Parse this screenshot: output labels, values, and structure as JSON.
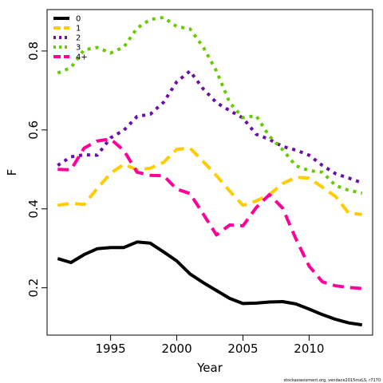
{
  "chart_data": {
    "type": "line",
    "xlabel": "Year",
    "ylabel": "F",
    "xlim": [
      1990.2,
      2014.8
    ],
    "ylim": [
      0.08,
      0.905
    ],
    "x_ticks": [
      1995,
      2000,
      2005,
      2010
    ],
    "y_ticks": [
      0.2,
      0.4,
      0.6,
      0.8
    ],
    "legend_position": "top-left",
    "x": [
      1991,
      1992,
      1993,
      1994,
      1995,
      1996,
      1997,
      1998,
      1999,
      2000,
      2001,
      2002,
      2003,
      2004,
      2005,
      2006,
      2007,
      2008,
      2009,
      2010,
      2011,
      2012,
      2013,
      2014
    ],
    "series": [
      {
        "name": "0",
        "color": "#000000",
        "dash": "solid",
        "values": [
          0.274,
          0.264,
          0.284,
          0.299,
          0.302,
          0.302,
          0.316,
          0.313,
          0.291,
          0.268,
          0.235,
          0.213,
          0.193,
          0.173,
          0.16,
          0.161,
          0.164,
          0.165,
          0.159,
          0.146,
          0.132,
          0.12,
          0.111,
          0.106
        ]
      },
      {
        "name": "1",
        "color": "#ffcc00",
        "dash": "dashed",
        "values": [
          0.409,
          0.414,
          0.411,
          0.452,
          0.49,
          0.513,
          0.499,
          0.503,
          0.518,
          0.551,
          0.554,
          0.52,
          0.484,
          0.445,
          0.409,
          0.42,
          0.436,
          0.464,
          0.48,
          0.478,
          0.455,
          0.431,
          0.389,
          0.386
        ]
      },
      {
        "name": "2",
        "color": "#6a0dad",
        "dash": "dotted",
        "values": [
          0.51,
          0.532,
          0.537,
          0.536,
          0.58,
          0.599,
          0.634,
          0.64,
          0.67,
          0.722,
          0.749,
          0.704,
          0.669,
          0.649,
          0.63,
          0.589,
          0.576,
          0.558,
          0.549,
          0.536,
          0.51,
          0.489,
          0.478,
          0.466
        ]
      },
      {
        "name": "3",
        "color": "#66cc00",
        "dash": "dotted",
        "values": [
          0.744,
          0.758,
          0.803,
          0.809,
          0.795,
          0.81,
          0.858,
          0.88,
          0.885,
          0.862,
          0.856,
          0.81,
          0.749,
          0.669,
          0.631,
          0.636,
          0.584,
          0.55,
          0.509,
          0.497,
          0.493,
          0.459,
          0.447,
          0.44
        ]
      },
      {
        "name": "4+",
        "color": "#ff0099",
        "dash": "dashed",
        "values": [
          0.5,
          0.499,
          0.554,
          0.572,
          0.577,
          0.548,
          0.493,
          0.485,
          0.484,
          0.45,
          0.439,
          0.387,
          0.334,
          0.359,
          0.357,
          0.403,
          0.436,
          0.402,
          0.324,
          0.255,
          0.215,
          0.205,
          0.201,
          0.198
        ]
      }
    ]
  },
  "credit_text": "stockassessment.org, vendace2015mxLS, r7170"
}
